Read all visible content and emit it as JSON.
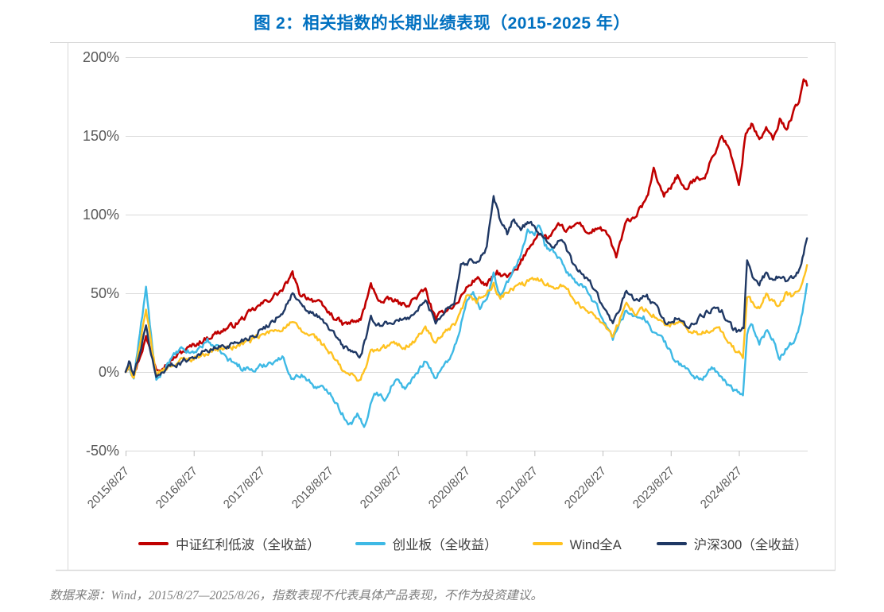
{
  "title": "图 2：相关指数的长期业绩表现（2015-2025 年）",
  "footer": "数据来源：Wind，2015/8/27—2025/8/26，指数表现不代表具体产品表现，不作为投资建议。",
  "colors": {
    "title_blue": "#0070C0",
    "gridline": "#D9D9D9",
    "frame_border": "#D9D9D9",
    "axis_text": "#595959",
    "legend_text": "#404040",
    "footer_text": "#7F7F7F"
  },
  "chart_data": {
    "type": "line",
    "title": "图 2：相关指数的长期业绩表现（2015-2025 年）",
    "xlabel": "",
    "ylabel": "",
    "x_range": [
      "2015/8/27",
      "2025/8/26"
    ],
    "x_unit": "years since 2015/8/27",
    "ylim": [
      -50,
      200
    ],
    "grid": "horizontal",
    "legend_position": "bottom",
    "yticks": [
      {
        "label": "200%",
        "value": 200
      },
      {
        "label": "150%",
        "value": 150
      },
      {
        "label": "100%",
        "value": 100
      },
      {
        "label": "50%",
        "value": 50
      },
      {
        "label": "0%",
        "value": 0
      },
      {
        "label": "-50%",
        "value": -50
      }
    ],
    "xticks": [
      {
        "label": "2015/8/27",
        "t": 0
      },
      {
        "label": "2016/8/27",
        "t": 1
      },
      {
        "label": "2017/8/27",
        "t": 2
      },
      {
        "label": "2018/8/27",
        "t": 3
      },
      {
        "label": "2019/8/27",
        "t": 4
      },
      {
        "label": "2020/8/27",
        "t": 5
      },
      {
        "label": "2021/8/27",
        "t": 6
      },
      {
        "label": "2022/8/27",
        "t": 7
      },
      {
        "label": "2023/8/27",
        "t": 8
      },
      {
        "label": "2024/8/27",
        "t": 9
      }
    ],
    "series": [
      {
        "name": "中证红利低波（全收益）",
        "key": "csi-dividend-low-vol-tr",
        "color": "#C00000",
        "points": [
          [
            0,
            0
          ],
          [
            0.05,
            5
          ],
          [
            0.12,
            -2
          ],
          [
            0.3,
            22
          ],
          [
            0.45,
            3
          ],
          [
            0.6,
            5
          ],
          [
            0.8,
            12
          ],
          [
            1.0,
            17
          ],
          [
            1.3,
            24
          ],
          [
            1.6,
            30
          ],
          [
            1.9,
            40
          ],
          [
            2.1,
            46
          ],
          [
            2.3,
            52
          ],
          [
            2.45,
            62
          ],
          [
            2.55,
            50
          ],
          [
            2.8,
            45
          ],
          [
            3.0,
            37
          ],
          [
            3.2,
            30
          ],
          [
            3.45,
            33
          ],
          [
            3.6,
            55
          ],
          [
            3.75,
            44
          ],
          [
            3.9,
            46
          ],
          [
            4.1,
            42
          ],
          [
            4.25,
            47
          ],
          [
            4.4,
            52
          ],
          [
            4.55,
            33
          ],
          [
            4.7,
            40
          ],
          [
            4.85,
            43
          ],
          [
            5.0,
            53
          ],
          [
            5.15,
            60
          ],
          [
            5.3,
            55
          ],
          [
            5.45,
            63
          ],
          [
            5.6,
            60
          ],
          [
            5.75,
            65
          ],
          [
            5.9,
            78
          ],
          [
            6.05,
            88
          ],
          [
            6.2,
            85
          ],
          [
            6.35,
            92
          ],
          [
            6.5,
            90
          ],
          [
            6.65,
            95
          ],
          [
            6.8,
            88
          ],
          [
            6.95,
            92
          ],
          [
            7.1,
            85
          ],
          [
            7.2,
            73
          ],
          [
            7.35,
            95
          ],
          [
            7.5,
            100
          ],
          [
            7.65,
            110
          ],
          [
            7.75,
            128
          ],
          [
            7.9,
            112
          ],
          [
            8.0,
            118
          ],
          [
            8.1,
            125
          ],
          [
            8.2,
            115
          ],
          [
            8.35,
            122
          ],
          [
            8.5,
            125
          ],
          [
            8.6,
            135
          ],
          [
            8.75,
            150
          ],
          [
            8.85,
            143
          ],
          [
            9.0,
            118
          ],
          [
            9.1,
            152
          ],
          [
            9.2,
            158
          ],
          [
            9.3,
            147
          ],
          [
            9.4,
            155
          ],
          [
            9.5,
            147
          ],
          [
            9.6,
            160
          ],
          [
            9.7,
            155
          ],
          [
            9.8,
            165
          ],
          [
            9.9,
            175
          ],
          [
            9.95,
            185
          ],
          [
            10,
            182
          ]
        ]
      },
      {
        "name": "创业板（全收益）",
        "key": "chinext-tr",
        "color": "#3EB9E5",
        "points": [
          [
            0,
            0
          ],
          [
            0.05,
            3
          ],
          [
            0.12,
            -4
          ],
          [
            0.3,
            53
          ],
          [
            0.45,
            -7
          ],
          [
            0.6,
            5
          ],
          [
            0.8,
            14
          ],
          [
            1.0,
            12
          ],
          [
            1.2,
            20
          ],
          [
            1.35,
            15
          ],
          [
            1.5,
            8
          ],
          [
            1.7,
            3
          ],
          [
            1.9,
            1
          ],
          [
            2.1,
            6
          ],
          [
            2.3,
            9
          ],
          [
            2.45,
            -4
          ],
          [
            2.6,
            -2
          ],
          [
            2.8,
            -10
          ],
          [
            3.0,
            -12
          ],
          [
            3.2,
            -28
          ],
          [
            3.3,
            -33
          ],
          [
            3.4,
            -28
          ],
          [
            3.5,
            -35
          ],
          [
            3.65,
            -12
          ],
          [
            3.8,
            -17
          ],
          [
            3.95,
            -5
          ],
          [
            4.1,
            -10
          ],
          [
            4.25,
            -3
          ],
          [
            4.4,
            8
          ],
          [
            4.55,
            -4
          ],
          [
            4.7,
            5
          ],
          [
            4.85,
            18
          ],
          [
            5.0,
            45
          ],
          [
            5.1,
            50
          ],
          [
            5.2,
            40
          ],
          [
            5.3,
            48
          ],
          [
            5.4,
            62
          ],
          [
            5.5,
            48
          ],
          [
            5.65,
            60
          ],
          [
            5.8,
            75
          ],
          [
            5.9,
            90
          ],
          [
            6.0,
            85
          ],
          [
            6.07,
            93
          ],
          [
            6.15,
            80
          ],
          [
            6.3,
            76
          ],
          [
            6.45,
            65
          ],
          [
            6.6,
            58
          ],
          [
            6.75,
            52
          ],
          [
            6.9,
            42
          ],
          [
            7.0,
            35
          ],
          [
            7.15,
            21
          ],
          [
            7.35,
            40
          ],
          [
            7.5,
            33
          ],
          [
            7.6,
            36
          ],
          [
            7.75,
            25
          ],
          [
            7.9,
            20
          ],
          [
            8.05,
            8
          ],
          [
            8.2,
            3
          ],
          [
            8.35,
            -3
          ],
          [
            8.45,
            -5
          ],
          [
            8.6,
            3
          ],
          [
            8.75,
            -5
          ],
          [
            8.9,
            -10
          ],
          [
            9.0,
            -14
          ],
          [
            9.06,
            -15
          ],
          [
            9.12,
            26
          ],
          [
            9.2,
            30
          ],
          [
            9.3,
            18
          ],
          [
            9.4,
            26
          ],
          [
            9.5,
            22
          ],
          [
            9.6,
            8
          ],
          [
            9.7,
            15
          ],
          [
            9.8,
            20
          ],
          [
            9.9,
            30
          ],
          [
            10,
            56
          ]
        ]
      },
      {
        "name": "Wind全A",
        "key": "wind-all-a",
        "color": "#FFC220",
        "points": [
          [
            0,
            0
          ],
          [
            0.05,
            2
          ],
          [
            0.12,
            -3
          ],
          [
            0.3,
            38
          ],
          [
            0.45,
            -2
          ],
          [
            0.6,
            3
          ],
          [
            0.8,
            7
          ],
          [
            1.0,
            9
          ],
          [
            1.3,
            14
          ],
          [
            1.6,
            16
          ],
          [
            1.9,
            21
          ],
          [
            2.1,
            25
          ],
          [
            2.3,
            28
          ],
          [
            2.45,
            31
          ],
          [
            2.6,
            25
          ],
          [
            2.8,
            22
          ],
          [
            3.0,
            12
          ],
          [
            3.2,
            0
          ],
          [
            3.45,
            -5
          ],
          [
            3.6,
            13
          ],
          [
            3.75,
            14
          ],
          [
            3.9,
            18
          ],
          [
            4.1,
            16
          ],
          [
            4.25,
            20
          ],
          [
            4.4,
            28
          ],
          [
            4.55,
            18
          ],
          [
            4.7,
            25
          ],
          [
            4.85,
            30
          ],
          [
            5.0,
            47
          ],
          [
            5.15,
            45
          ],
          [
            5.3,
            50
          ],
          [
            5.4,
            55
          ],
          [
            5.5,
            47
          ],
          [
            5.65,
            52
          ],
          [
            5.8,
            55
          ],
          [
            5.95,
            58
          ],
          [
            6.1,
            59
          ],
          [
            6.25,
            54
          ],
          [
            6.4,
            56
          ],
          [
            6.55,
            48
          ],
          [
            6.7,
            40
          ],
          [
            6.85,
            38
          ],
          [
            7.0,
            32
          ],
          [
            7.15,
            22
          ],
          [
            7.35,
            43
          ],
          [
            7.5,
            38
          ],
          [
            7.65,
            40
          ],
          [
            7.8,
            34
          ],
          [
            7.95,
            28
          ],
          [
            8.1,
            32
          ],
          [
            8.25,
            26
          ],
          [
            8.45,
            24
          ],
          [
            8.6,
            28
          ],
          [
            8.75,
            26
          ],
          [
            8.9,
            15
          ],
          [
            9.0,
            12
          ],
          [
            9.06,
            10
          ],
          [
            9.12,
            48
          ],
          [
            9.2,
            44
          ],
          [
            9.3,
            40
          ],
          [
            9.4,
            49
          ],
          [
            9.5,
            44
          ],
          [
            9.6,
            42
          ],
          [
            9.7,
            50
          ],
          [
            9.8,
            48
          ],
          [
            9.9,
            52
          ],
          [
            10,
            68
          ]
        ]
      },
      {
        "name": "沪深300（全收益）",
        "key": "csi-300-tr",
        "color": "#1F3864",
        "points": [
          [
            0,
            0
          ],
          [
            0.05,
            6
          ],
          [
            0.12,
            -2
          ],
          [
            0.3,
            28
          ],
          [
            0.45,
            -4
          ],
          [
            0.6,
            3
          ],
          [
            0.8,
            6
          ],
          [
            1.0,
            10
          ],
          [
            1.3,
            15
          ],
          [
            1.6,
            18
          ],
          [
            1.9,
            24
          ],
          [
            2.1,
            30
          ],
          [
            2.3,
            38
          ],
          [
            2.45,
            50
          ],
          [
            2.6,
            40
          ],
          [
            2.8,
            36
          ],
          [
            3.0,
            27
          ],
          [
            3.2,
            16
          ],
          [
            3.45,
            10
          ],
          [
            3.6,
            33
          ],
          [
            3.75,
            30
          ],
          [
            3.9,
            32
          ],
          [
            4.1,
            33
          ],
          [
            4.25,
            38
          ],
          [
            4.4,
            45
          ],
          [
            4.55,
            32
          ],
          [
            4.7,
            40
          ],
          [
            4.82,
            44
          ],
          [
            4.92,
            68
          ],
          [
            5.05,
            70
          ],
          [
            5.2,
            72
          ],
          [
            5.3,
            80
          ],
          [
            5.4,
            112
          ],
          [
            5.5,
            95
          ],
          [
            5.6,
            88
          ],
          [
            5.7,
            98
          ],
          [
            5.8,
            90
          ],
          [
            5.9,
            95
          ],
          [
            6.0,
            92
          ],
          [
            6.1,
            88
          ],
          [
            6.25,
            80
          ],
          [
            6.4,
            84
          ],
          [
            6.55,
            70
          ],
          [
            6.7,
            62
          ],
          [
            6.85,
            55
          ],
          [
            7.0,
            42
          ],
          [
            7.15,
            30
          ],
          [
            7.35,
            51
          ],
          [
            7.5,
            45
          ],
          [
            7.65,
            48
          ],
          [
            7.8,
            40
          ],
          [
            7.95,
            30
          ],
          [
            8.1,
            35
          ],
          [
            8.25,
            28
          ],
          [
            8.45,
            35
          ],
          [
            8.6,
            40
          ],
          [
            8.75,
            38
          ],
          [
            8.9,
            28
          ],
          [
            9.0,
            25
          ],
          [
            9.07,
            27
          ],
          [
            9.12,
            72
          ],
          [
            9.2,
            60
          ],
          [
            9.3,
            57
          ],
          [
            9.4,
            63
          ],
          [
            9.5,
            58
          ],
          [
            9.6,
            62
          ],
          [
            9.7,
            57
          ],
          [
            9.8,
            60
          ],
          [
            9.9,
            66
          ],
          [
            10,
            85
          ]
        ]
      }
    ]
  }
}
